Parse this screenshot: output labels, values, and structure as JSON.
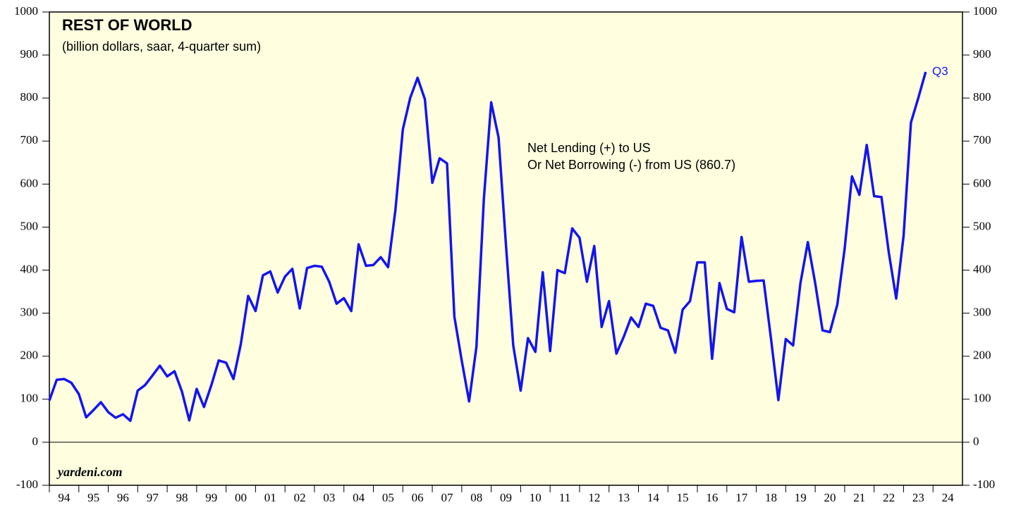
{
  "chart_data": {
    "type": "line",
    "title": "REST OF WORLD",
    "subtitle": "(billion dollars, saar, 4-quarter sum)",
    "annotations": [
      "Net Lending (+) to US",
      "Or Net Borrowing (-) from US (860.7)"
    ],
    "end_label": "Q3",
    "source": "yardeni.com",
    "x": [
      1994,
      1994.25,
      1994.5,
      1994.75,
      1995,
      1995.25,
      1995.5,
      1995.75,
      1996,
      1996.25,
      1996.5,
      1996.75,
      1997,
      1997.25,
      1997.5,
      1997.75,
      1998,
      1998.25,
      1998.5,
      1998.75,
      1999,
      1999.25,
      1999.5,
      1999.75,
      2000,
      2000.25,
      2000.5,
      2000.75,
      2001,
      2001.25,
      2001.5,
      2001.75,
      2002,
      2002.25,
      2002.5,
      2002.75,
      2003,
      2003.25,
      2003.5,
      2003.75,
      2004,
      2004.25,
      2004.5,
      2004.75,
      2005,
      2005.25,
      2005.5,
      2005.75,
      2006,
      2006.25,
      2006.5,
      2006.75,
      2007,
      2007.25,
      2007.5,
      2007.75,
      2008,
      2008.25,
      2008.5,
      2008.75,
      2009,
      2009.25,
      2009.5,
      2009.75,
      2010,
      2010.25,
      2010.5,
      2010.75,
      2011,
      2011.25,
      2011.5,
      2011.75,
      2012,
      2012.25,
      2012.5,
      2012.75,
      2013,
      2013.25,
      2013.5,
      2013.75,
      2014,
      2014.25,
      2014.5,
      2014.75,
      2015,
      2015.25,
      2015.5,
      2015.75,
      2016,
      2016.25,
      2016.5,
      2016.75,
      2017,
      2017.25,
      2017.5,
      2017.75,
      2018,
      2018.25,
      2018.5,
      2018.75,
      2019,
      2019.25,
      2019.5,
      2019.75,
      2020,
      2020.25,
      2020.5,
      2020.75,
      2021,
      2021.25,
      2021.5,
      2021.75,
      2022,
      2022.25,
      2022.5,
      2022.75,
      2023,
      2023.25,
      2023.5,
      2023.75
    ],
    "series": [
      {
        "color": "#1414ee",
        "values": [
          97,
          145,
          147,
          138,
          112,
          58,
          75,
          93,
          70,
          57,
          65,
          50,
          120,
          133,
          155,
          178,
          153,
          165,
          118,
          51,
          124,
          82,
          133,
          190,
          185,
          147,
          228,
          340,
          305,
          388,
          397,
          348,
          385,
          403,
          311,
          405,
          410,
          408,
          373,
          322,
          335,
          305,
          460,
          410,
          412,
          430,
          407,
          540,
          727,
          800,
          847,
          797,
          603,
          660,
          648,
          292,
          190,
          95,
          222,
          565,
          790,
          708,
          460,
          225,
          120,
          242,
          210,
          395,
          212,
          400,
          393,
          497,
          475,
          373,
          456,
          268,
          328,
          206,
          245,
          290,
          268,
          322,
          317,
          266,
          260,
          208,
          308,
          328,
          418,
          418,
          194,
          370,
          310,
          302,
          477,
          373,
          375,
          376,
          240,
          98,
          240,
          225,
          370,
          465,
          370,
          260,
          256,
          320,
          450,
          618,
          575,
          691,
          572,
          570,
          440,
          334,
          480,
          743,
          800,
          860.7
        ]
      }
    ],
    "xlim": [
      1994,
      2025
    ],
    "xticks": [
      {
        "value": 1994.5,
        "label": "94"
      },
      {
        "value": 1995.5,
        "label": "95"
      },
      {
        "value": 1996.5,
        "label": "96"
      },
      {
        "value": 1997.5,
        "label": "97"
      },
      {
        "value": 1998.5,
        "label": "98"
      },
      {
        "value": 1999.5,
        "label": "99"
      },
      {
        "value": 2000.5,
        "label": "00"
      },
      {
        "value": 2001.5,
        "label": "01"
      },
      {
        "value": 2002.5,
        "label": "02"
      },
      {
        "value": 2003.5,
        "label": "03"
      },
      {
        "value": 2004.5,
        "label": "04"
      },
      {
        "value": 2005.5,
        "label": "05"
      },
      {
        "value": 2006.5,
        "label": "06"
      },
      {
        "value": 2007.5,
        "label": "07"
      },
      {
        "value": 2008.5,
        "label": "08"
      },
      {
        "value": 2009.5,
        "label": "09"
      },
      {
        "value": 2010.5,
        "label": "10"
      },
      {
        "value": 2011.5,
        "label": "11"
      },
      {
        "value": 2012.5,
        "label": "12"
      },
      {
        "value": 2013.5,
        "label": "13"
      },
      {
        "value": 2014.5,
        "label": "14"
      },
      {
        "value": 2015.5,
        "label": "15"
      },
      {
        "value": 2016.5,
        "label": "16"
      },
      {
        "value": 2017.5,
        "label": "17"
      },
      {
        "value": 2018.5,
        "label": "18"
      },
      {
        "value": 2019.5,
        "label": "19"
      },
      {
        "value": 2020.5,
        "label": "20"
      },
      {
        "value": 2021.5,
        "label": "21"
      },
      {
        "value": 2022.5,
        "label": "22"
      },
      {
        "value": 2023.5,
        "label": "23"
      },
      {
        "value": 2024.5,
        "label": "24"
      }
    ],
    "ylim": [
      -100,
      1000
    ],
    "yticks": [
      -100,
      0,
      100,
      200,
      300,
      400,
      500,
      600,
      700,
      800,
      900,
      1000
    ]
  }
}
